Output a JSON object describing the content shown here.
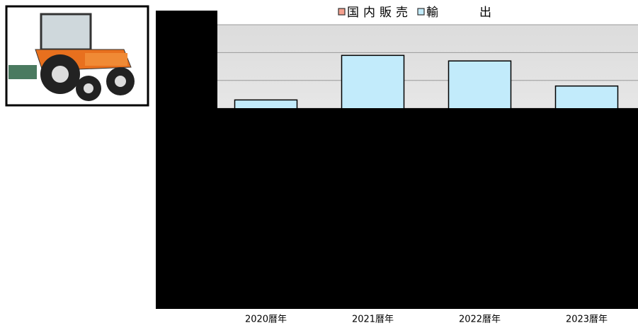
{
  "chart_data": {
    "type": "bar",
    "categories": [
      "2020暦年",
      "2021暦年",
      "2022暦年",
      "2023暦年"
    ],
    "series": [
      {
        "name": "国内販売",
        "color": "#f4a08e",
        "values": [
          null,
          null,
          null,
          null
        ]
      },
      {
        "name": "輸出",
        "color": "#c2ebfb",
        "values": [
          7.3,
          8.9,
          8.7,
          7.8
        ]
      }
    ],
    "ylim": [
      0,
      10
    ],
    "grid_values": [
      7,
      8,
      9,
      10
    ],
    "grid": true
  }
}
